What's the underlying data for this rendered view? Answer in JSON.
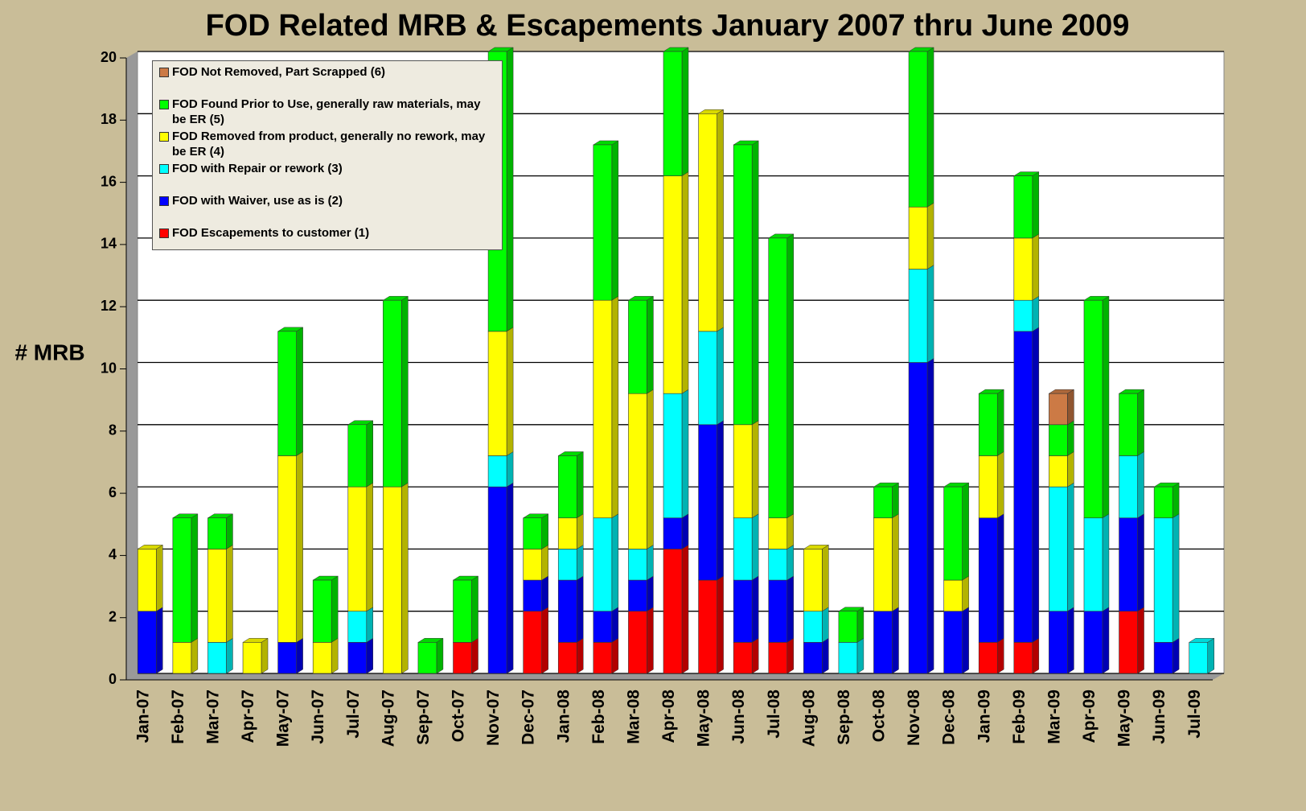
{
  "chart_data": {
    "type": "stacked_bar",
    "title": "FOD Related MRB & Escapements January 2007 thru June 2009",
    "y_label": "# MRB",
    "categories": [
      "Jan-07",
      "Feb-07",
      "Mar-07",
      "Apr-07",
      "May-07",
      "Jun-07",
      "Jul-07",
      "Aug-07",
      "Sep-07",
      "Oct-07",
      "Nov-07",
      "Dec-07",
      "Jan-08",
      "Feb-08",
      "Mar-08",
      "Apr-08",
      "May-08",
      "Jun-08",
      "Jul-08",
      "Aug-08",
      "Sep-08",
      "Oct-08",
      "Nov-08",
      "Dec-08",
      "Jan-09",
      "Feb-09",
      "Mar-09",
      "Apr-09",
      "May-09",
      "Jun-09",
      "Jul-09"
    ],
    "series": [
      {
        "name": "FOD Escapements  to customer  (1)",
        "color": "#ff0000",
        "values": [
          0,
          0,
          0,
          0,
          0,
          0,
          0,
          0,
          0,
          1,
          0,
          2,
          1,
          1,
          2,
          4,
          3,
          1,
          1,
          0,
          0,
          0,
          0,
          0,
          1,
          1,
          0,
          0,
          2,
          0,
          0
        ]
      },
      {
        "name": "FOD with Waiver,  use as is (2)",
        "color": "#0000ff",
        "values": [
          2,
          0,
          0,
          0,
          1,
          0,
          1,
          0,
          0,
          0,
          6,
          1,
          2,
          1,
          1,
          1,
          5,
          2,
          2,
          1,
          0,
          2,
          10,
          2,
          4,
          10,
          2,
          2,
          3,
          1,
          0
        ]
      },
      {
        "name": "FOD with Repair  or rework  (3)",
        "color": "#00ffff",
        "values": [
          0,
          0,
          1,
          0,
          0,
          0,
          1,
          0,
          0,
          0,
          1,
          0,
          1,
          3,
          1,
          4,
          3,
          2,
          1,
          1,
          1,
          0,
          3,
          0,
          0,
          1,
          4,
          3,
          2,
          4,
          1
        ]
      },
      {
        "name": "FOD Removed  from  product,  generally no rework, may be ER (4)",
        "color": "#ffff00",
        "values": [
          2,
          1,
          3,
          1,
          6,
          1,
          4,
          6,
          0,
          0,
          4,
          1,
          1,
          7,
          5,
          7,
          7,
          3,
          1,
          2,
          0,
          3,
          2,
          1,
          2,
          2,
          1,
          0,
          0,
          0,
          0
        ]
      },
      {
        "name": "FOD Found Prior to Use,  generally  raw materials, may be  ER (5)",
        "color": "#00ff00",
        "values": [
          0,
          4,
          1,
          0,
          4,
          2,
          2,
          6,
          1,
          2,
          9,
          1,
          2,
          5,
          3,
          4,
          0,
          9,
          9,
          0,
          1,
          1,
          5,
          3,
          2,
          2,
          1,
          7,
          2,
          1,
          0
        ]
      },
      {
        "name": "FOD Not Removed,  Part Scrapped  (6)",
        "color": "#cc7a45",
        "values": [
          0,
          0,
          0,
          0,
          0,
          0,
          0,
          0,
          0,
          0,
          0,
          0,
          0,
          0,
          0,
          0,
          0,
          0,
          0,
          0,
          0,
          0,
          0,
          0,
          0,
          0,
          1,
          0,
          0,
          0,
          0
        ]
      }
    ],
    "ylim": [
      0,
      20
    ],
    "yticks": [
      0,
      2,
      4,
      6,
      8,
      10,
      12,
      14,
      16,
      18,
      20
    ],
    "grid": true,
    "legend": "upper left"
  }
}
